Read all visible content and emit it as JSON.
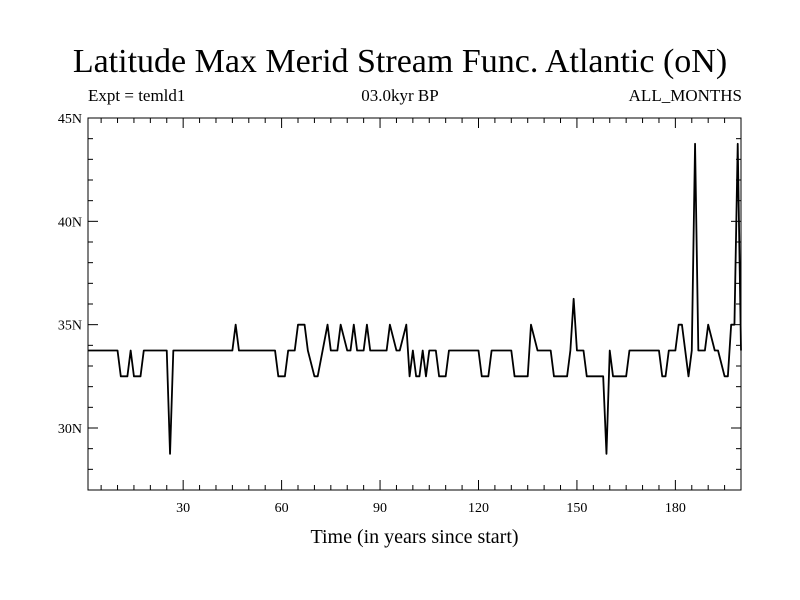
{
  "chart_data": {
    "type": "line",
    "title": "Latitude Max Merid Stream Func. Atlantic (oN)",
    "subtitle_left": "Expt = temld1",
    "subtitle_center": "03.0kyr BP",
    "subtitle_right": "ALL_MONTHS",
    "xlabel": "Time (in years since start)",
    "ylabel": "",
    "xlim": [
      1,
      200
    ],
    "ylim": [
      27,
      45
    ],
    "x_ticks": [
      30,
      60,
      90,
      120,
      150,
      180
    ],
    "y_ticks": [
      {
        "value": 30,
        "label": "30N"
      },
      {
        "value": 35,
        "label": "35N"
      },
      {
        "value": 40,
        "label": "40N"
      },
      {
        "value": 45,
        "label": "45N"
      }
    ],
    "grid": false,
    "series": [
      {
        "x": [
          1,
          10,
          11,
          13,
          14,
          15,
          17,
          18,
          25,
          26,
          27,
          45,
          46,
          47,
          58,
          59,
          61,
          62,
          64,
          65,
          67,
          68,
          70,
          71,
          74,
          75,
          77,
          78,
          80,
          81,
          82,
          83,
          85,
          86,
          87,
          88,
          92,
          93,
          95,
          96,
          98,
          99,
          100,
          101,
          102,
          103,
          104,
          105,
          107,
          108,
          110,
          111,
          120,
          121,
          123,
          124,
          130,
          131,
          135,
          136,
          138,
          139,
          142,
          143,
          147,
          148,
          149,
          150,
          152,
          153,
          158,
          159,
          160,
          161,
          165,
          166,
          175,
          176,
          177,
          178,
          180,
          181,
          182,
          183,
          184,
          185,
          186,
          187,
          189,
          190,
          192,
          193,
          195,
          196,
          197,
          198,
          199,
          200
        ],
        "y": [
          33.75,
          33.75,
          32.5,
          32.5,
          33.75,
          32.5,
          32.5,
          33.75,
          33.75,
          28.75,
          33.75,
          33.75,
          35,
          33.75,
          33.75,
          32.5,
          32.5,
          33.75,
          33.75,
          35,
          35,
          33.75,
          32.5,
          32.5,
          35,
          33.75,
          33.75,
          35,
          33.75,
          33.75,
          35,
          33.75,
          33.75,
          35,
          33.75,
          33.75,
          33.75,
          35,
          33.75,
          33.75,
          35,
          32.5,
          33.75,
          32.5,
          32.5,
          33.75,
          32.5,
          33.75,
          33.75,
          32.5,
          32.5,
          33.75,
          33.75,
          32.5,
          32.5,
          33.75,
          33.75,
          32.5,
          32.5,
          35,
          33.75,
          33.75,
          33.75,
          32.5,
          32.5,
          33.75,
          36.25,
          33.75,
          33.75,
          32.5,
          32.5,
          28.75,
          33.75,
          32.5,
          32.5,
          33.75,
          33.75,
          32.5,
          32.5,
          33.75,
          33.75,
          35,
          35,
          33.75,
          32.5,
          33.75,
          43.75,
          33.75,
          33.75,
          35,
          33.75,
          33.75,
          32.5,
          32.5,
          35,
          35,
          43.75,
          33.75
        ]
      }
    ]
  }
}
